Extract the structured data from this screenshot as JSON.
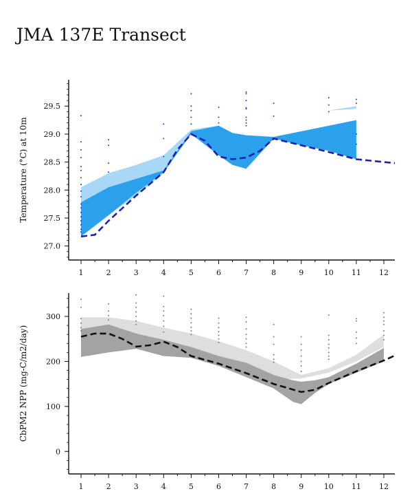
{
  "page": {
    "title": "JMA 137E Transect"
  },
  "chart_data": [
    {
      "type": "area",
      "ylabel": "Temperature (°C) at 10m",
      "xlabel": "",
      "xlim": [
        0.55,
        12.4
      ],
      "ylim": [
        26.75,
        29.97
      ],
      "xticks": [
        1,
        2,
        3,
        4,
        5,
        6,
        7,
        8,
        9,
        10,
        11,
        12
      ],
      "yticks": [
        27.0,
        27.5,
        28.0,
        28.5,
        29.0,
        29.5
      ],
      "ytick_labels": [
        "27.0",
        "27.5",
        "28.0",
        "28.5",
        "29.0",
        "29.5"
      ],
      "colors": {
        "light_band": "#a8d8f5",
        "dark_band": "#2ba1ec",
        "line": "#1f1fb0",
        "points": "#1f3bd6"
      },
      "series": [
        {
          "kind": "band-light",
          "x": [
            1,
            2,
            3,
            4,
            5,
            6,
            7,
            8,
            9,
            10,
            11
          ],
          "lower": [
            27.17,
            27.55,
            27.9,
            28.3,
            29.05,
            29.15,
            29.2,
            29.35,
            29.4,
            29.42,
            29.45
          ],
          "upper": [
            28.05,
            28.3,
            28.45,
            28.62,
            29.08,
            29.15,
            29.2,
            29.35,
            29.4,
            29.42,
            29.5
          ]
        },
        {
          "kind": "band-dark",
          "x": [
            1,
            2,
            3,
            4,
            5,
            6,
            6.5,
            7,
            8,
            9,
            10,
            11
          ],
          "lower": [
            27.17,
            27.55,
            27.95,
            28.32,
            29.0,
            28.62,
            28.45,
            28.38,
            28.92,
            28.8,
            28.7,
            28.55
          ],
          "upper": [
            27.78,
            28.05,
            28.2,
            28.35,
            29.05,
            29.15,
            29.02,
            28.98,
            28.95,
            29.05,
            29.15,
            29.25
          ]
        },
        {
          "kind": "climatology-line",
          "x": [
            1,
            1.5,
            2,
            3,
            4,
            4.5,
            5,
            5.5,
            6,
            6.5,
            7,
            7.5,
            8,
            9,
            10,
            11,
            12,
            12.4
          ],
          "y": [
            27.17,
            27.2,
            27.45,
            27.9,
            28.32,
            28.72,
            29.0,
            28.88,
            28.6,
            28.55,
            28.58,
            28.7,
            28.92,
            28.8,
            28.68,
            28.55,
            28.5,
            28.48
          ]
        },
        {
          "kind": "observations",
          "points": [
            [
              1,
              29.33
            ],
            [
              1,
              28.86
            ],
            [
              1,
              28.72
            ],
            [
              1,
              28.58
            ],
            [
              1,
              28.42
            ],
            [
              1,
              28.35
            ],
            [
              1,
              28.22
            ],
            [
              1,
              28.1
            ],
            [
              1,
              27.98
            ],
            [
              1,
              27.88
            ],
            [
              1,
              27.75
            ],
            [
              1,
              27.68
            ],
            [
              1,
              27.6
            ],
            [
              1,
              27.52
            ],
            [
              1,
              27.45
            ],
            [
              1,
              27.38
            ],
            [
              1,
              27.3
            ],
            [
              1,
              27.25
            ],
            [
              2,
              28.9
            ],
            [
              2,
              28.8
            ],
            [
              2,
              28.48
            ],
            [
              2,
              28.32
            ],
            [
              4,
              29.18
            ],
            [
              4,
              28.92
            ],
            [
              4,
              28.6
            ],
            [
              5,
              29.72
            ],
            [
              5,
              29.5
            ],
            [
              5,
              29.42
            ],
            [
              5,
              29.3
            ],
            [
              5,
              29.18
            ],
            [
              6,
              29.48
            ],
            [
              6,
              29.3
            ],
            [
              6,
              29.2
            ],
            [
              7,
              29.75
            ],
            [
              7,
              29.72
            ],
            [
              7,
              29.6
            ],
            [
              7,
              29.47
            ],
            [
              7,
              29.45
            ],
            [
              7,
              29.3
            ],
            [
              7,
              29.25
            ],
            [
              7,
              29.2
            ],
            [
              7,
              29.15
            ],
            [
              8,
              29.55
            ],
            [
              8,
              29.32
            ],
            [
              10,
              29.65
            ],
            [
              10,
              29.52
            ],
            [
              10,
              29.4
            ],
            [
              11,
              29.62
            ],
            [
              11,
              29.55
            ],
            [
              11,
              29.0
            ],
            [
              11,
              28.82
            ]
          ]
        }
      ]
    },
    {
      "type": "area",
      "ylabel": "CbPM2 NPP (mg-C/m2/day)",
      "xlabel": "",
      "xlim": [
        0.55,
        12.4
      ],
      "ylim": [
        -50,
        352
      ],
      "xticks": [
        1,
        2,
        3,
        4,
        5,
        6,
        7,
        8,
        9,
        10,
        11,
        12
      ],
      "yticks": [
        0,
        100,
        200,
        300
      ],
      "ytick_labels": [
        "0",
        "100",
        "200",
        "300"
      ],
      "colors": {
        "light_band": "#dedede",
        "dark_band": "#a3a3a3",
        "line": "#111111",
        "points": "#7a7a7a"
      },
      "series": [
        {
          "kind": "band-light",
          "x": [
            1,
            2,
            3,
            4,
            5,
            6,
            7,
            8,
            9,
            10,
            11,
            12
          ],
          "lower": [
            268,
            272,
            258,
            238,
            222,
            200,
            180,
            160,
            162,
            175,
            200,
            232
          ],
          "upper": [
            298,
            298,
            290,
            275,
            262,
            245,
            225,
            200,
            170,
            185,
            215,
            260
          ]
        },
        {
          "kind": "band-dark",
          "x": [
            1,
            2,
            3,
            4,
            5,
            6,
            7,
            8,
            8.7,
            9,
            9.5,
            10,
            11,
            12
          ],
          "lower": [
            210,
            220,
            228,
            212,
            208,
            190,
            165,
            140,
            110,
            105,
            130,
            150,
            175,
            200
          ],
          "upper": [
            272,
            282,
            262,
            248,
            232,
            212,
            197,
            170,
            158,
            155,
            158,
            165,
            195,
            230
          ]
        },
        {
          "kind": "climatology-line",
          "x": [
            1,
            1.5,
            2,
            2.5,
            3,
            3.5,
            4,
            4.5,
            5,
            6,
            7,
            8,
            9,
            9.5,
            10,
            11,
            12,
            12.4
          ],
          "y": [
            255,
            262,
            262,
            250,
            233,
            236,
            244,
            232,
            212,
            195,
            174,
            150,
            132,
            137,
            152,
            178,
            202,
            213
          ]
        },
        {
          "kind": "observations",
          "points": [
            [
              1,
              338
            ],
            [
              1,
              320
            ],
            [
              1,
              295
            ],
            [
              1,
              285
            ],
            [
              1,
              275
            ],
            [
              1,
              268
            ],
            [
              2,
              328
            ],
            [
              2,
              312
            ],
            [
              2,
              302
            ],
            [
              2,
              292
            ],
            [
              3,
              348
            ],
            [
              3,
              330
            ],
            [
              3,
              320
            ],
            [
              3,
              310
            ],
            [
              3,
              300
            ],
            [
              3,
              290
            ],
            [
              3,
              282
            ],
            [
              4,
              345
            ],
            [
              4,
              322
            ],
            [
              4,
              312
            ],
            [
              4,
              302
            ],
            [
              4,
              290
            ],
            [
              4,
              278
            ],
            [
              4,
              265
            ],
            [
              5,
              316
            ],
            [
              5,
              306
            ],
            [
              5,
              296
            ],
            [
              5,
              286
            ],
            [
              5,
              276
            ],
            [
              5,
              268
            ],
            [
              5,
              260
            ],
            [
              6,
              296
            ],
            [
              6,
              285
            ],
            [
              6,
              275
            ],
            [
              6,
              266
            ],
            [
              6,
              258
            ],
            [
              6,
              250
            ],
            [
              6,
              242
            ],
            [
              7,
              298
            ],
            [
              7,
              288
            ],
            [
              7,
              272
            ],
            [
              7,
              260
            ],
            [
              7,
              250
            ],
            [
              7,
              240
            ],
            [
              7,
              232
            ],
            [
              8,
              282
            ],
            [
              8,
              255
            ],
            [
              8,
              238
            ],
            [
              8,
              215
            ],
            [
              8,
              205
            ],
            [
              8,
              198
            ],
            [
              9,
              255
            ],
            [
              9,
              238
            ],
            [
              9,
              225
            ],
            [
              9,
              212
            ],
            [
              9,
              200
            ],
            [
              9,
              190
            ],
            [
              9,
              178
            ],
            [
              10,
              303
            ],
            [
              10,
              258
            ],
            [
              10,
              248
            ],
            [
              10,
              238
            ],
            [
              10,
              230
            ],
            [
              10,
              220
            ],
            [
              10,
              212
            ],
            [
              10,
              205
            ],
            [
              11,
              295
            ],
            [
              11,
              290
            ],
            [
              11,
              265
            ],
            [
              11,
              252
            ],
            [
              11,
              240
            ],
            [
              12,
              308
            ],
            [
              12,
              298
            ],
            [
              12,
              290
            ],
            [
              12,
              282
            ],
            [
              12,
              268
            ],
            [
              12,
              258
            ],
            [
              12,
              248
            ]
          ]
        }
      ]
    }
  ]
}
